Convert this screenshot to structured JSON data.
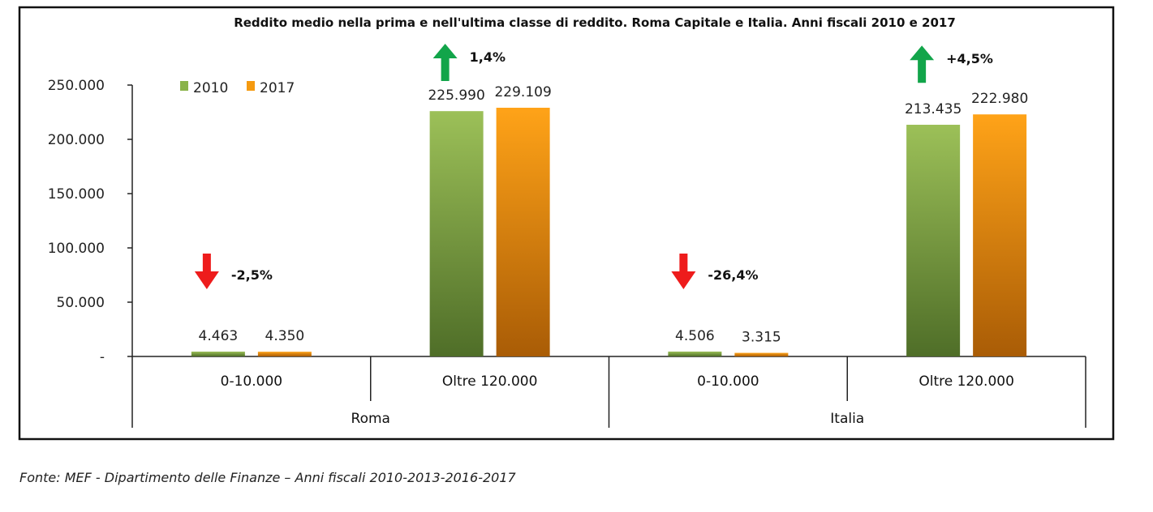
{
  "chart_data": {
    "type": "bar",
    "title": "Reddito medio nella prima e nell'ultima classe di reddito. Roma Capitale e Italia. Anni fiscali 2010 e 2017",
    "groups": [
      "Roma",
      "Italia"
    ],
    "categories": [
      "0-10.000",
      "Oltre 120.000",
      "0-10.000",
      "Oltre 120.000"
    ],
    "category_group": [
      0,
      0,
      1,
      1
    ],
    "series": [
      {
        "name": "2010",
        "values": [
          4463,
          225990,
          4506,
          213435
        ],
        "labels": [
          "4.463",
          "225.990",
          "4.506",
          "213.435"
        ],
        "color": "#8ab34a"
      },
      {
        "name": "2017",
        "values": [
          4350,
          229109,
          3315,
          222980
        ],
        "labels": [
          "4.350",
          "229.109",
          "3.315",
          "222.980"
        ],
        "color": "#f59a10"
      }
    ],
    "changes": [
      {
        "label": "-2,5%",
        "direction": "down",
        "color": "#ee1c1c"
      },
      {
        "label": "1,4%",
        "direction": "up",
        "color": "#12a54a"
      },
      {
        "label": "-26,4%",
        "direction": "down",
        "color": "#ee1c1c"
      },
      {
        "label": "+4,5%",
        "direction": "up",
        "color": "#12a54a"
      }
    ],
    "y_ticks": [
      0,
      50000,
      100000,
      150000,
      200000,
      250000
    ],
    "y_tick_labels": [
      "-",
      "50.000",
      "100.000",
      "150.000",
      "200.000",
      "250.000"
    ],
    "ylim": [
      0,
      250000
    ],
    "grid": false,
    "legend_position": "top-left"
  },
  "source": "Fonte: MEF - Dipartimento delle Finanze – Anni fiscali 2010-2013-2016-2017"
}
